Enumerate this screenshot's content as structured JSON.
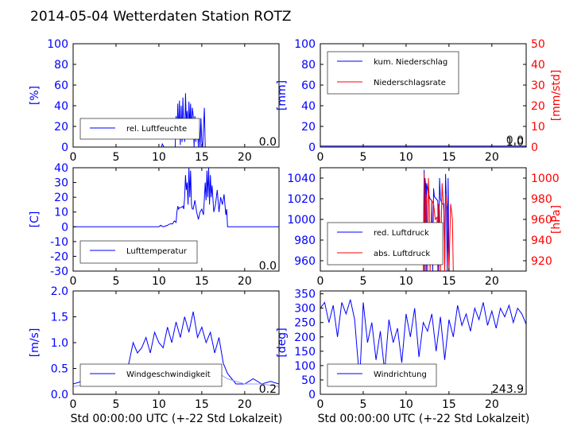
{
  "title": "2014-05-04 Wetterdaten Station ROTZ",
  "xlabel": "Std 00:00:00 UTC (+-22 Std Lokalzeit)",
  "colors": {
    "primary": "#0000ff",
    "secondary": "#ff0000",
    "light": "#9999ff"
  },
  "chart_data": [
    {
      "id": "humidity",
      "type": "line",
      "xlim": [
        0,
        24
      ],
      "ylim": [
        0,
        100
      ],
      "x_ticks": [
        0,
        5,
        10,
        15,
        20
      ],
      "y_ticks": [
        0,
        20,
        40,
        60,
        80,
        100
      ],
      "ylabel": "[%]",
      "current_value": "0.0",
      "legend": [
        "rel. Luftfeuchte"
      ],
      "series": [
        {
          "name": "rel. Luftfeuchte",
          "color": "#0000ff",
          "x": [
            0,
            10.3,
            10.4,
            10.6,
            11.3,
            11.9,
            12.0,
            12.1,
            12.2,
            12.3,
            12.4,
            12.5,
            12.6,
            12.7,
            12.8,
            12.9,
            13.0,
            13.1,
            13.2,
            13.3,
            13.4,
            13.5,
            13.6,
            13.7,
            13.8,
            13.9,
            14.0,
            14.1,
            14.2,
            14.3,
            14.4,
            14.5,
            14.6,
            14.7,
            14.8,
            14.9,
            15.0,
            15.1,
            15.3,
            15.4,
            15.5,
            16.0,
            24
          ],
          "y": [
            0,
            0,
            3,
            0,
            0,
            0,
            30,
            8,
            42,
            10,
            45,
            2,
            40,
            5,
            48,
            20,
            5,
            52,
            25,
            35,
            8,
            44,
            20,
            42,
            10,
            38,
            30,
            0,
            30,
            5,
            20,
            18,
            0,
            22,
            0,
            28,
            5,
            0,
            38,
            0,
            0,
            0,
            0
          ]
        }
      ]
    },
    {
      "id": "precipitation",
      "type": "line",
      "xlim": [
        0,
        24
      ],
      "ylim": [
        0,
        100
      ],
      "y2lim": [
        0,
        50
      ],
      "x_ticks": [
        0,
        5,
        10,
        15,
        20
      ],
      "y_ticks": [
        0,
        20,
        40,
        60,
        80,
        100
      ],
      "y2_ticks": [
        0,
        10,
        20,
        30,
        40,
        50
      ],
      "ylabel": "[mm]",
      "y2label": "[mm/std]",
      "current_value": "1.0",
      "current_value2": "0.0",
      "legend": [
        "kum. Niederschlag",
        "Niederschlagsrate"
      ],
      "series": [
        {
          "name": "kum. Niederschlag",
          "color": "#0000ff",
          "axis": "left",
          "x": [
            0,
            24
          ],
          "y": [
            1,
            1
          ]
        },
        {
          "name": "Niederschlagsrate",
          "color": "#ff0000",
          "axis": "right",
          "x": [
            0,
            24
          ],
          "y": [
            0,
            0
          ]
        }
      ]
    },
    {
      "id": "temperature",
      "type": "line",
      "xlim": [
        0,
        24
      ],
      "ylim": [
        -30,
        40
      ],
      "x_ticks": [
        0,
        5,
        10,
        15,
        20
      ],
      "y_ticks": [
        -30,
        -20,
        -10,
        0,
        10,
        20,
        30,
        40
      ],
      "ylabel": "[C]",
      "current_value": "0.0",
      "legend": [
        "Lufttemperatur"
      ],
      "series": [
        {
          "name": "Lufttemperatur",
          "color": "#0000ff",
          "x": [
            0,
            10.0,
            10.2,
            10.5,
            11.0,
            11.3,
            11.6,
            11.8,
            12.0,
            12.1,
            12.2,
            12.3,
            12.4,
            12.6,
            12.8,
            12.9,
            13.0,
            13.1,
            13.2,
            13.3,
            13.4,
            13.5,
            13.6,
            13.7,
            13.8,
            13.9,
            14.0,
            14.2,
            14.4,
            14.6,
            14.8,
            15.0,
            15.2,
            15.4,
            15.5,
            15.6,
            15.7,
            15.8,
            15.9,
            16.0,
            16.1,
            16.2,
            16.4,
            16.6,
            16.8,
            17.0,
            17.2,
            17.4,
            17.6,
            17.8,
            17.9,
            18.0,
            24
          ],
          "y": [
            0,
            0,
            1,
            0,
            1,
            2,
            2,
            4,
            3,
            10,
            14,
            12,
            13,
            13,
            14,
            12,
            20,
            35,
            25,
            30,
            15,
            40,
            20,
            38,
            15,
            12,
            12,
            18,
            10,
            5,
            10,
            12,
            8,
            30,
            18,
            38,
            20,
            40,
            15,
            35,
            20,
            28,
            10,
            15,
            25,
            10,
            20,
            15,
            22,
            8,
            12,
            0,
            0
          ]
        }
      ]
    },
    {
      "id": "pressure",
      "type": "line",
      "xlim": [
        0,
        24
      ],
      "ylim": [
        950,
        1050
      ],
      "y2lim": [
        910,
        1010
      ],
      "x_ticks": [
        0,
        5,
        10,
        15,
        20
      ],
      "y_ticks": [
        960,
        980,
        1000,
        1020,
        1040
      ],
      "y2_ticks": [
        920,
        940,
        960,
        980,
        1000
      ],
      "ylabel": "",
      "y2label": "[hPa]",
      "legend": [
        "red. Luftdruck",
        "abs. Luftdruck"
      ],
      "series": [
        {
          "name": "red. Luftdruck",
          "color": "#0000ff",
          "axis": "left",
          "x": [
            12.0,
            12.1,
            12.15,
            12.2,
            12.3,
            12.35,
            12.4,
            12.5,
            12.6,
            12.8,
            13.0,
            13.1,
            13.2,
            13.3,
            13.5,
            13.7,
            13.8,
            13.9,
            14.0,
            14.2,
            14.4,
            14.5,
            14.6,
            14.7,
            14.8,
            14.9,
            15.0
          ],
          "y": [
            950,
            1048,
            950,
            1040,
            1032,
            950,
            1035,
            1030,
            1025,
            1020,
            1018,
            950,
            1030,
            1022,
            1020,
            1018,
            950,
            1040,
            1020,
            1015,
            1015,
            950,
            1044,
            1020,
            950,
            1040,
            950
          ]
        },
        {
          "name": "abs. Luftdruck",
          "color": "#ff0000",
          "axis": "right",
          "x": [
            12.0,
            12.1,
            12.2,
            12.3,
            12.4,
            12.5,
            12.6,
            12.7,
            12.8,
            13.0,
            13.2,
            13.4,
            13.6,
            13.7,
            13.8,
            13.9,
            14.0,
            14.2,
            14.4,
            14.5,
            14.6,
            14.8,
            15.0,
            15.2,
            15.4,
            15.5,
            15.6
          ],
          "y": [
            910,
            1005,
            910,
            985,
            978,
            910,
            1000,
            975,
            910,
            978,
            975,
            960,
            962,
            910,
            975,
            968,
            910,
            995,
            968,
            910,
            985,
            970,
            910,
            975,
            960,
            910,
            910
          ]
        }
      ]
    },
    {
      "id": "windspeed",
      "type": "line",
      "xlim": [
        0,
        24
      ],
      "ylim": [
        0,
        2.0
      ],
      "x_ticks": [
        0,
        5,
        10,
        15,
        20
      ],
      "y_ticks": [
        0.0,
        0.5,
        1.0,
        1.5,
        2.0
      ],
      "ylabel": "[m/s]",
      "current_value": "0.2",
      "legend": [
        "Windgeschwindigkeit"
      ],
      "series": [
        {
          "name": "Windgeschwindigkeit",
          "color": "#0000ff",
          "x": [
            0,
            1,
            2,
            3,
            4,
            5,
            6,
            6.5,
            7,
            7.5,
            8,
            8.5,
            9,
            9.5,
            10,
            10.5,
            11,
            11.5,
            12,
            12.5,
            13,
            13.5,
            14,
            14.5,
            15,
            15.5,
            16,
            16.5,
            17,
            17.5,
            18,
            18.5,
            19,
            20,
            21,
            22,
            23,
            24
          ],
          "y": [
            0.2,
            0.25,
            0.2,
            0.3,
            0.2,
            0.3,
            0.4,
            0.6,
            1.0,
            0.8,
            0.9,
            1.1,
            0.8,
            1.2,
            1.0,
            0.9,
            1.3,
            1.0,
            1.4,
            1.1,
            1.5,
            1.2,
            1.6,
            1.1,
            1.3,
            1.0,
            1.2,
            0.8,
            1.1,
            0.6,
            0.4,
            0.3,
            0.2,
            0.2,
            0.3,
            0.2,
            0.25,
            0.2
          ]
        },
        {
          "name": "",
          "color": "#9999ff",
          "x": [
            0,
            2,
            4,
            6,
            8,
            10,
            12,
            14,
            16,
            18,
            20,
            22,
            24
          ],
          "y": [
            0.15,
            0.2,
            0.25,
            0.3,
            0.5,
            0.45,
            0.5,
            0.55,
            0.5,
            0.3,
            0.2,
            0.2,
            0.15
          ]
        }
      ]
    },
    {
      "id": "winddir",
      "type": "line",
      "xlim": [
        0,
        24
      ],
      "ylim": [
        0,
        360
      ],
      "x_ticks": [
        0,
        5,
        10,
        15,
        20
      ],
      "y_ticks": [
        0,
        50,
        100,
        150,
        200,
        250,
        300,
        350
      ],
      "ylabel": "[deg]",
      "current_value": "243.9",
      "legend": [
        "Windrichtung"
      ],
      "series": [
        {
          "name": "Windrichtung",
          "color": "#0000ff",
          "x": [
            0,
            0.5,
            1,
            1.5,
            2,
            2.5,
            3,
            3.5,
            4,
            4.3,
            4.6,
            5,
            5.5,
            6,
            6.5,
            7,
            7.5,
            8,
            8.5,
            9,
            9.5,
            10,
            10.5,
            11,
            11.5,
            12,
            12.5,
            13,
            13.5,
            14,
            14.5,
            15,
            15.5,
            16,
            16.5,
            17,
            17.5,
            18,
            18.5,
            19,
            19.5,
            20,
            20.5,
            21,
            21.5,
            22,
            22.5,
            23,
            23.5,
            24
          ],
          "y": [
            300,
            320,
            250,
            310,
            200,
            320,
            280,
            330,
            260,
            150,
            50,
            320,
            180,
            250,
            120,
            220,
            80,
            260,
            180,
            230,
            110,
            280,
            200,
            300,
            130,
            250,
            220,
            280,
            150,
            270,
            120,
            260,
            200,
            310,
            240,
            280,
            220,
            300,
            260,
            320,
            240,
            290,
            230,
            300,
            270,
            310,
            250,
            300,
            280,
            244
          ]
        }
      ]
    }
  ]
}
